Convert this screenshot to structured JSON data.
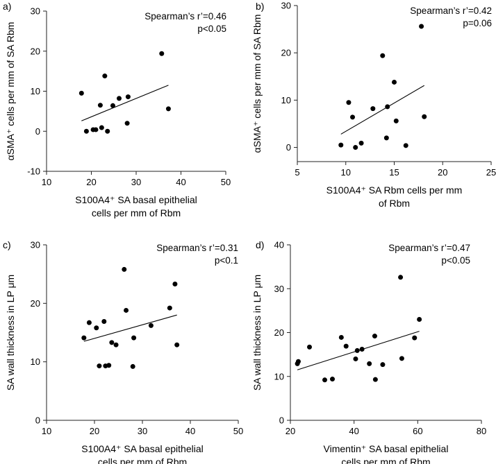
{
  "chart_data": [
    {
      "type": "scatter",
      "panel_label": "a)",
      "xlabel_lines": [
        "S100A4⁺ SA basal epithelial",
        "cells per mm of Rbm"
      ],
      "ylabel": "αSMA⁺ cells per mm of SA Rbm",
      "xlim": [
        10,
        50
      ],
      "ylim": [
        -10,
        30
      ],
      "xticks": [
        10,
        20,
        30,
        40,
        50
      ],
      "yticks": [
        -10,
        0,
        10,
        20,
        30
      ],
      "x": [
        17.8,
        18.9,
        20.4,
        21.0,
        22.0,
        22.3,
        23.0,
        23.6,
        24.8,
        26.2,
        28.0,
        28.2,
        35.7,
        37.2
      ],
      "y": [
        9.5,
        0.0,
        0.4,
        0.4,
        6.5,
        0.9,
        13.8,
        0.0,
        6.4,
        8.2,
        2.0,
        8.6,
        19.4,
        5.6
      ],
      "fit": {
        "x": [
          17.8,
          37.2
        ],
        "y": [
          2.6,
          11.5
        ]
      },
      "stats": [
        "Spearman’s r’=0.46",
        "p<0.05"
      ]
    },
    {
      "type": "scatter",
      "panel_label": "b)",
      "xlabel_lines": [
        "S100A4⁺ SA Rbm cells per mm",
        "of Rbm"
      ],
      "ylabel": "αSMA⁺ cells per mm of SA Rbm",
      "xlim": [
        5,
        25
      ],
      "ylim": [
        -3,
        30
      ],
      "xticks": [
        5,
        10,
        15,
        20,
        25
      ],
      "yticks": [
        0,
        10,
        20,
        30
      ],
      "x": [
        9.5,
        10.3,
        10.7,
        11.0,
        11.6,
        12.8,
        13.8,
        14.2,
        14.3,
        15.0,
        15.2,
        16.2,
        17.8,
        18.1
      ],
      "y": [
        0.5,
        9.5,
        6.4,
        0.0,
        0.9,
        8.2,
        19.4,
        2.0,
        8.6,
        13.8,
        5.6,
        0.4,
        25.6,
        6.5
      ],
      "fit": {
        "x": [
          9.5,
          18.1
        ],
        "y": [
          2.8,
          13.1
        ]
      },
      "stats": [
        "Spearman’s r’=0.42",
        "p=0.06"
      ]
    },
    {
      "type": "scatter",
      "panel_label": "c)",
      "xlabel_lines": [
        "S100A4⁺ SA basal epithelial",
        "cells per mm of Rbm"
      ],
      "ylabel": "SA wall thickness in LP μm",
      "xlim": [
        10,
        50
      ],
      "ylim": [
        0,
        30
      ],
      "xticks": [
        10,
        20,
        30,
        40,
        50
      ],
      "yticks": [
        0,
        10,
        20,
        30
      ],
      "x": [
        17.8,
        18.9,
        20.4,
        21.0,
        22.0,
        22.3,
        23.0,
        23.6,
        24.5,
        26.2,
        26.6,
        28.0,
        28.2,
        31.8,
        35.7,
        36.8,
        37.2
      ],
      "y": [
        14.1,
        16.7,
        15.8,
        9.3,
        16.9,
        9.3,
        9.4,
        13.3,
        12.9,
        25.8,
        18.8,
        9.2,
        14.1,
        16.2,
        19.2,
        23.3,
        12.9
      ],
      "fit": {
        "x": [
          17.8,
          37.2
        ],
        "y": [
          13.5,
          18.0
        ]
      },
      "stats": [
        "Spearman’s r’=0.31",
        "p<0.1"
      ]
    },
    {
      "type": "scatter",
      "panel_label": "d)",
      "xlabel_lines": [
        "Vimentin⁺ SA basal epithelial",
        "cells per mm of Rbm"
      ],
      "ylabel": "SA wall thickness in LP μm",
      "xlim": [
        20,
        80
      ],
      "ylim": [
        0,
        40
      ],
      "xticks": [
        20,
        40,
        60,
        80
      ],
      "yticks": [
        0,
        10,
        20,
        30,
        40
      ],
      "x": [
        22.2,
        22.5,
        26.0,
        30.8,
        33.2,
        36.0,
        37.5,
        40.5,
        41.0,
        42.5,
        44.8,
        46.5,
        46.7,
        49.0,
        54.6,
        55.0,
        59.0,
        60.5
      ],
      "y": [
        12.9,
        13.4,
        16.7,
        9.2,
        9.4,
        18.9,
        16.9,
        14.0,
        15.9,
        16.2,
        12.9,
        19.2,
        9.3,
        12.7,
        32.6,
        14.1,
        18.8,
        23.0
      ],
      "fit": {
        "x": [
          22.2,
          60.5
        ],
        "y": [
          11.5,
          20.3
        ]
      },
      "stats": [
        "Spearman’s r’=0.47",
        "p<0.05"
      ]
    }
  ]
}
